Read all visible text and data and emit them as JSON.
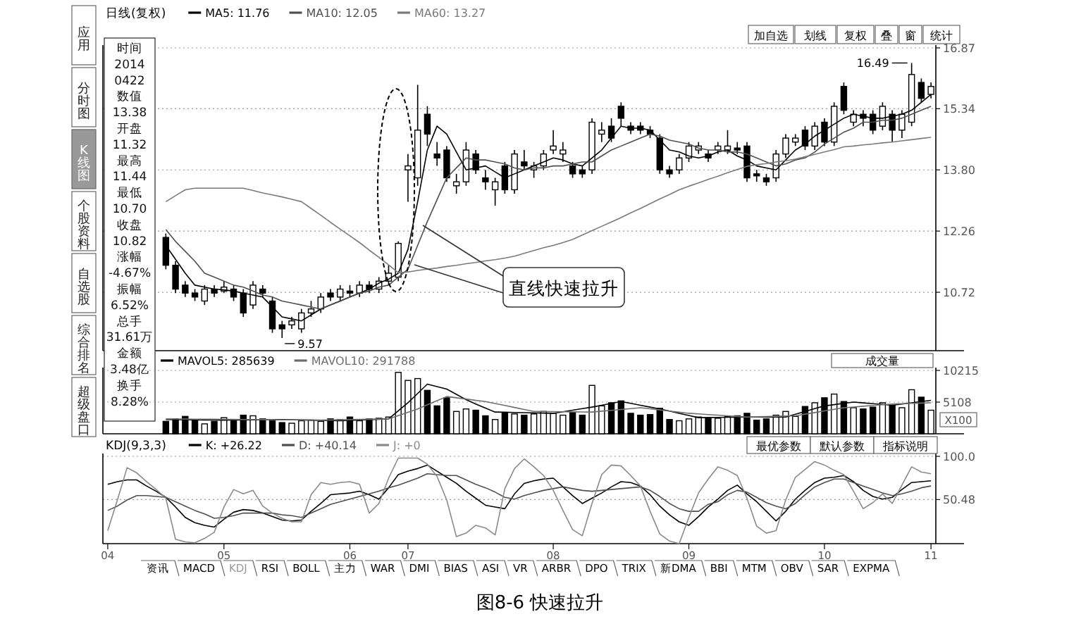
{
  "chart_data": [
    {
      "type": "candlestick",
      "title": "日线(复权)",
      "legend": "top left",
      "tick_labels": "y",
      "grid": "y",
      "ylim": [
        9.25,
        16.87
      ],
      "yticks": [
        10.72,
        12.26,
        {
          "value": 13.8,
          "label": "13.80"
        },
        15.34,
        16.87
      ],
      "categories": [
        null,
        null,
        null,
        null,
        null,
        null,
        null,
        null,
        null,
        null,
        null,
        null,
        null,
        null,
        null,
        null,
        null,
        null,
        null,
        null,
        null,
        null,
        null,
        null,
        null,
        null,
        null,
        null,
        null,
        null,
        null,
        null,
        null,
        null,
        null,
        null,
        null,
        null,
        null,
        null,
        null,
        null,
        null,
        null,
        null,
        null,
        null,
        null,
        null,
        null,
        null,
        null,
        null,
        null,
        null,
        null,
        null,
        null,
        null,
        null,
        null,
        null,
        null,
        null,
        null,
        null,
        null,
        null,
        null,
        null,
        null,
        null,
        null,
        null,
        null,
        null,
        null,
        null,
        null,
        null,
        null,
        null,
        null,
        null,
        null,
        null
      ],
      "color": "#000000",
      "ohlc": [
        null,
        null,
        null,
        null,
        null,
        null,
        [
          12.1,
          12.2,
          11.3,
          11.4
        ],
        [
          11.4,
          11.5,
          10.7,
          10.8
        ],
        [
          10.9,
          11.0,
          10.6,
          10.7
        ],
        [
          10.7,
          10.8,
          10.5,
          10.6
        ],
        [
          10.5,
          10.9,
          10.4,
          10.8
        ],
        [
          10.8,
          10.9,
          10.6,
          10.7
        ],
        [
          10.75,
          11.0,
          10.7,
          10.85
        ],
        [
          10.8,
          10.9,
          10.5,
          10.6
        ],
        [
          10.7,
          10.8,
          10.1,
          10.2
        ],
        [
          10.4,
          11.0,
          10.3,
          10.9
        ],
        [
          10.8,
          10.9,
          10.6,
          10.7
        ],
        [
          10.5,
          10.6,
          9.7,
          9.8
        ],
        [
          9.9,
          10.0,
          9.57,
          9.8
        ],
        [
          9.9,
          10.1,
          9.8,
          10.0
        ],
        [
          9.8,
          10.3,
          9.7,
          10.2
        ],
        [
          10.2,
          10.5,
          10.1,
          10.3
        ],
        [
          10.3,
          10.7,
          10.2,
          10.6
        ],
        [
          10.7,
          10.8,
          10.5,
          10.6
        ],
        [
          10.6,
          10.9,
          10.5,
          10.8
        ],
        [
          10.75,
          10.9,
          10.6,
          10.7
        ],
        [
          10.7,
          11.0,
          10.6,
          10.9
        ],
        [
          10.9,
          11.0,
          10.7,
          10.8
        ],
        [
          10.8,
          11.1,
          10.7,
          11.0
        ],
        [
          11.0,
          11.4,
          10.9,
          11.2
        ],
        [
          11.1,
          12.0,
          11.0,
          11.95
        ],
        [
          13.8,
          14.2,
          13.0,
          13.9
        ],
        [
          13.6,
          15.94,
          13.4,
          14.8
        ],
        [
          15.2,
          15.4,
          14.4,
          14.7
        ],
        [
          14.2,
          14.5,
          13.9,
          14.1
        ],
        [
          14.3,
          14.4,
          13.5,
          13.6
        ],
        [
          13.4,
          13.7,
          13.2,
          13.5
        ],
        [
          13.5,
          14.5,
          13.4,
          14.3
        ],
        [
          14.2,
          14.3,
          13.7,
          13.8
        ],
        [
          13.6,
          13.8,
          13.3,
          13.5
        ],
        [
          13.3,
          13.6,
          12.9,
          13.5
        ],
        [
          13.9,
          14.0,
          13.2,
          13.3
        ],
        [
          13.3,
          14.3,
          13.2,
          14.2
        ],
        [
          14.0,
          14.3,
          13.8,
          13.9
        ],
        [
          13.8,
          14.0,
          13.6,
          13.9
        ],
        [
          13.9,
          14.3,
          13.8,
          14.2
        ],
        [
          14.3,
          14.8,
          14.2,
          14.4
        ],
        [
          14.2,
          14.5,
          14.0,
          14.3
        ],
        [
          13.9,
          14.0,
          13.6,
          13.7
        ],
        [
          13.8,
          13.9,
          13.6,
          13.7
        ],
        [
          13.8,
          15.1,
          13.7,
          15.0
        ],
        [
          14.7,
          15.0,
          14.5,
          14.8
        ],
        [
          14.9,
          15.1,
          14.5,
          14.6
        ],
        [
          15.4,
          15.5,
          14.9,
          15.1
        ],
        [
          14.9,
          15.0,
          14.7,
          14.8
        ],
        [
          14.9,
          15.0,
          14.7,
          14.8
        ],
        [
          14.8,
          14.9,
          14.6,
          14.7
        ],
        [
          14.6,
          14.7,
          13.7,
          13.8
        ],
        [
          13.8,
          13.9,
          13.6,
          13.7
        ],
        [
          13.8,
          14.2,
          13.7,
          14.1
        ],
        [
          14.1,
          14.5,
          14.0,
          14.4
        ],
        [
          14.3,
          14.5,
          14.2,
          14.4
        ],
        [
          14.2,
          14.3,
          14.0,
          14.1
        ],
        [
          14.3,
          14.5,
          14.2,
          14.4
        ],
        [
          14.3,
          14.8,
          14.2,
          14.4
        ],
        [
          14.35,
          14.5,
          14.2,
          14.3
        ],
        [
          14.4,
          14.5,
          13.5,
          13.6
        ],
        [
          13.7,
          13.8,
          13.5,
          13.65
        ],
        [
          13.6,
          13.7,
          13.4,
          13.5
        ],
        [
          13.6,
          14.3,
          13.5,
          14.2
        ],
        [
          14.2,
          14.7,
          14.1,
          14.6
        ],
        [
          14.5,
          14.7,
          14.4,
          14.6
        ],
        [
          14.8,
          14.9,
          14.3,
          14.4
        ],
        [
          14.4,
          15.0,
          14.3,
          14.9
        ],
        [
          15.0,
          15.1,
          14.4,
          14.5
        ],
        [
          14.5,
          15.5,
          14.4,
          15.4
        ],
        [
          15.9,
          16.0,
          15.2,
          15.3
        ],
        [
          15.0,
          15.3,
          14.9,
          15.2
        ],
        [
          15.2,
          15.3,
          14.9,
          15.1
        ],
        [
          15.2,
          15.3,
          14.7,
          14.8
        ],
        [
          14.9,
          15.5,
          14.8,
          15.4
        ],
        [
          15.2,
          15.3,
          14.5,
          14.8
        ],
        [
          14.8,
          15.3,
          14.6,
          15.2
        ],
        [
          15.0,
          16.49,
          14.9,
          16.2
        ],
        [
          16.0,
          16.1,
          15.5,
          15.6
        ],
        [
          15.7,
          16.0,
          15.6,
          15.9
        ]
      ],
      "series": [
        {
          "name": "MA5: 11.76",
          "type": "line",
          "color": "#000000",
          "values": [
            null,
            null,
            null,
            null,
            null,
            null,
            11.9,
            11.55,
            11.2,
            10.9,
            10.85,
            10.8,
            10.78,
            10.75,
            10.7,
            10.65,
            10.6,
            10.35,
            10.1,
            10.05,
            10.0,
            10.15,
            10.3,
            10.4,
            10.5,
            10.6,
            10.7,
            10.8,
            10.95,
            11.05,
            11.2,
            11.8,
            13.0,
            14.3,
            14.9,
            14.7,
            14.25,
            13.8,
            13.85,
            13.9,
            13.75,
            13.6,
            13.7,
            13.8,
            13.9,
            14.0,
            14.1,
            14.05,
            13.95,
            13.9,
            14.1,
            14.3,
            14.6,
            14.9,
            14.85,
            14.85,
            14.8,
            14.55,
            14.3,
            14.25,
            14.15,
            14.1,
            14.15,
            14.25,
            14.3,
            14.15,
            14.05,
            13.9,
            13.85,
            13.8,
            14.05,
            14.3,
            14.45,
            14.65,
            14.8,
            14.95,
            15.1,
            15.2,
            15.15,
            15.1,
            15.1,
            15.15,
            15.2,
            15.3,
            15.5,
            15.7
          ]
        },
        {
          "name": "MA10: 12.05",
          "type": "line",
          "color": "#505050",
          "values": [
            null,
            null,
            null,
            null,
            null,
            null,
            12.3,
            12.0,
            11.75,
            11.5,
            11.2,
            11.1,
            11.0,
            10.9,
            10.85,
            10.75,
            10.65,
            10.6,
            10.5,
            10.45,
            10.4,
            10.35,
            10.3,
            10.4,
            10.5,
            10.6,
            10.7,
            10.75,
            10.85,
            10.9,
            11.1,
            11.3,
            11.9,
            12.5,
            13.05,
            13.6,
            13.85,
            14.1,
            14.05,
            14.05,
            14.0,
            13.95,
            13.85,
            13.8,
            13.85,
            13.85,
            13.9,
            13.9,
            13.95,
            14.0,
            14.0,
            14.15,
            14.3,
            14.4,
            14.5,
            14.6,
            14.7,
            14.65,
            14.55,
            14.5,
            14.45,
            14.35,
            14.3,
            14.3,
            14.25,
            14.25,
            14.2,
            14.1,
            14.0,
            13.9,
            13.95,
            14.05,
            14.1,
            14.25,
            14.45,
            14.6,
            14.75,
            14.85,
            15.0,
            15.0,
            15.05,
            15.05,
            15.1,
            15.2,
            15.3,
            15.4
          ]
        },
        {
          "name": "MA60: 13.27",
          "type": "line",
          "color": "#7a7a7a",
          "values": [
            null,
            null,
            null,
            null,
            null,
            null,
            13.0,
            13.15,
            13.3,
            13.34,
            13.34,
            13.34,
            13.34,
            13.34,
            13.34,
            13.28,
            13.22,
            13.17,
            13.12,
            13.06,
            13.0,
            12.83,
            12.66,
            12.48,
            12.31,
            12.14,
            11.97,
            11.78,
            11.6,
            11.41,
            11.21,
            11.23,
            11.27,
            11.3,
            11.33,
            11.37,
            11.4,
            11.44,
            11.47,
            11.51,
            11.54,
            11.58,
            11.63,
            11.7,
            11.77,
            11.84,
            11.9,
            11.97,
            12.05,
            12.16,
            12.27,
            12.38,
            12.49,
            12.6,
            12.72,
            12.83,
            12.95,
            13.07,
            13.18,
            13.3,
            13.39,
            13.47,
            13.56,
            13.64,
            13.73,
            13.81,
            13.89,
            13.93,
            13.96,
            14.0,
            14.03,
            14.07,
            14.13,
            14.19,
            14.25,
            14.31,
            14.38,
            14.4,
            14.43,
            14.45,
            14.48,
            14.5,
            14.53,
            14.56,
            14.59,
            14.62
          ]
        }
      ],
      "annotations": [
        "16.49",
        "9.57",
        "直线快速拉升",
        "时间",
        "2014",
        "0422",
        "数值",
        "13.38",
        "开盘",
        "11.32",
        "最高",
        "11.44",
        "最低",
        "10.70",
        "收盘",
        "10.82",
        "涨幅",
        "-4.67%",
        "振幅",
        "6.52%",
        "总手",
        "31.61万",
        "金额",
        "3.48亿",
        "换手",
        "8.28%",
        "应用",
        "分时图",
        "K线图",
        "个股资料",
        "自选股",
        "综合排名",
        "超级盘口",
        "加自选",
        "划线",
        "复权",
        "叠",
        "窗",
        "统计"
      ]
    },
    {
      "type": "bar",
      "legend": "top left",
      "tick_labels": "y",
      "grid": "y",
      "ylim": [
        0,
        10215
      ],
      "yticks": [
        5108,
        10215
      ],
      "categories": [
        null,
        null,
        null,
        null,
        null,
        null,
        null,
        null,
        null,
        null,
        null,
        null,
        null,
        null,
        null,
        null,
        null,
        null,
        null,
        null,
        null,
        null,
        null,
        null,
        null,
        null,
        null,
        null,
        null,
        null,
        null,
        null,
        null,
        null,
        null,
        null,
        null,
        null,
        null,
        null,
        null,
        null,
        null,
        null,
        null,
        null,
        null,
        null,
        null,
        null,
        null,
        null,
        null,
        null,
        null,
        null,
        null,
        null,
        null,
        null,
        null,
        null,
        null,
        null,
        null,
        null,
        null,
        null,
        null,
        null,
        null,
        null,
        null,
        null,
        null,
        null,
        null,
        null,
        null,
        null,
        null,
        null,
        null,
        null,
        null,
        null
      ],
      "values": [
        null,
        null,
        null,
        null,
        null,
        null,
        2000,
        2400,
        2800,
        2300,
        1600,
        2000,
        2600,
        2100,
        3000,
        2900,
        2400,
        2200,
        1800,
        1700,
        2100,
        2200,
        2000,
        2400,
        2300,
        2700,
        2100,
        2400,
        2500,
        2700,
        9900,
        8600,
        8900,
        7000,
        4500,
        5800,
        3600,
        4000,
        3800,
        2900,
        2300,
        3400,
        3200,
        3000,
        3200,
        3600,
        3300,
        3000,
        3500,
        3000,
        7800,
        4500,
        5000,
        5300,
        3300,
        3000,
        3100,
        4100,
        2300,
        2100,
        2400,
        2700,
        2500,
        2500,
        2800,
        2900,
        3300,
        2200,
        2400,
        3000,
        3600,
        2800,
        4400,
        5000,
        5800,
        6400,
        5200,
        4200,
        4000,
        4300,
        5000,
        4600,
        4200,
        7100,
        5900,
        3800
      ],
      "colors": [
        null,
        null,
        null,
        null,
        null,
        null,
        "#000000",
        "#000000",
        "#000000",
        "#000000",
        "#ffffff",
        "#000000",
        "#ffffff",
        "#000000",
        "#000000",
        "#ffffff",
        "#000000",
        "#000000",
        "#000000",
        "#ffffff",
        "#ffffff",
        "#ffffff",
        "#ffffff",
        "#000000",
        "#ffffff",
        "#000000",
        "#ffffff",
        "#000000",
        "#ffffff",
        "#ffffff",
        "#ffffff",
        "#ffffff",
        "#ffffff",
        "#000000",
        "#000000",
        "#000000",
        "#ffffff",
        "#ffffff",
        "#000000",
        "#000000",
        "#ffffff",
        "#000000",
        "#ffffff",
        "#000000",
        "#ffffff",
        "#ffffff",
        "#ffffff",
        "#ffffff",
        "#000000",
        "#000000",
        "#ffffff",
        "#ffffff",
        "#000000",
        "#000000",
        "#000000",
        "#000000",
        "#000000",
        "#000000",
        "#000000",
        "#ffffff",
        "#ffffff",
        "#ffffff",
        "#000000",
        "#ffffff",
        "#ffffff",
        "#000000",
        "#000000",
        "#000000",
        "#000000",
        "#ffffff",
        "#ffffff",
        "#ffffff",
        "#000000",
        "#ffffff",
        "#000000",
        "#ffffff",
        "#000000",
        "#ffffff",
        "#000000",
        "#000000",
        "#ffffff",
        "#000000",
        "#ffffff",
        "#ffffff",
        "#000000",
        "#ffffff"
      ],
      "series": [
        {
          "name": "MAVOL5: 285639",
          "type": "line",
          "color": "#000000",
          "values": [
            null,
            null,
            null,
            null,
            null,
            null,
            2300,
            2280,
            2270,
            2250,
            2230,
            2220,
            2200,
            2220,
            2230,
            2250,
            2270,
            2280,
            2300,
            2270,
            2230,
            2200,
            2170,
            2130,
            2100,
            2160,
            2220,
            2280,
            2340,
            2400,
            3700,
            5000,
            6500,
            8000,
            7600,
            7200,
            6350,
            5500,
            4800,
            4150,
            3500,
            3470,
            3430,
            3400,
            3370,
            3330,
            3300,
            3550,
            3800,
            4050,
            4300,
            4600,
            4900,
            5200,
            4900,
            4600,
            4300,
            4000,
            3650,
            3300,
            2950,
            2600,
            2620,
            2640,
            2660,
            2680,
            2700,
            2700,
            2700,
            2700,
            2700,
            3150,
            3600,
            4050,
            4500,
            4700,
            4900,
            5100,
            4980,
            4850,
            4730,
            4600,
            4800,
            5000,
            5200,
            5400
          ]
        },
        {
          "name": "MAVOL10: 291788",
          "type": "line",
          "color": "#6e6e6e",
          "values": [
            null,
            null,
            null,
            null,
            null,
            null,
            2400,
            2390,
            2380,
            2360,
            2350,
            2340,
            2330,
            2310,
            2300,
            2290,
            2280,
            2260,
            2250,
            2240,
            2230,
            2210,
            2200,
            2230,
            2260,
            2290,
            2310,
            2340,
            2370,
            2400,
            2930,
            3470,
            4000,
            4670,
            5330,
            6000,
            5800,
            5600,
            5400,
            5200,
            4880,
            4560,
            4240,
            3920,
            3600,
            3580,
            3570,
            3550,
            3530,
            3520,
            3500,
            3640,
            3780,
            3920,
            4060,
            4200,
            4020,
            3840,
            3660,
            3480,
            3300,
            3200,
            3100,
            3000,
            2900,
            2800,
            2700,
            2740,
            2780,
            2820,
            2860,
            2900,
            3160,
            3420,
            3680,
            3940,
            4200,
            4320,
            4440,
            4560,
            4680,
            4800,
            4850,
            4900,
            4950,
            5000
          ]
        }
      ],
      "annotations": [
        "成交量",
        "X100"
      ]
    },
    {
      "type": "line",
      "title": "KDJ(9,3,3)",
      "legend": "top left",
      "grid": "y",
      "ylim": [
        0,
        100
      ],
      "yticks": [
        {
          "value": 50.48,
          "label": "50.48"
        },
        {
          "value": 100,
          "label": "100.0"
        }
      ],
      "categories": [
        "04",
        null,
        null,
        null,
        null,
        null,
        null,
        null,
        null,
        null,
        null,
        null,
        "05",
        null,
        null,
        null,
        null,
        null,
        null,
        null,
        null,
        null,
        null,
        null,
        null,
        "06",
        null,
        null,
        null,
        null,
        null,
        "07",
        null,
        null,
        null,
        null,
        null,
        null,
        null,
        null,
        null,
        null,
        null,
        null,
        null,
        null,
        "08",
        null,
        null,
        null,
        null,
        null,
        null,
        null,
        null,
        null,
        null,
        null,
        null,
        null,
        "09",
        null,
        null,
        null,
        null,
        null,
        null,
        null,
        null,
        null,
        null,
        null,
        null,
        null,
        "10",
        null,
        null,
        null,
        null,
        null,
        null,
        null,
        null,
        null,
        null,
        "11"
      ],
      "series": [
        {
          "name": "K: +26.22",
          "color": "#000000",
          "values": [
            68,
            71,
            73,
            73,
            66,
            60,
            53,
            42,
            30,
            24,
            21,
            19,
            28,
            36,
            39,
            38,
            35,
            31,
            27,
            26,
            27,
            37,
            46,
            56,
            57,
            58,
            60,
            56,
            51,
            64,
            79,
            83,
            86,
            90,
            83,
            76,
            69,
            60,
            52,
            44,
            42,
            40,
            57,
            69,
            72,
            74,
            75,
            65,
            55,
            46,
            52,
            58,
            65,
            71,
            70,
            66,
            56,
            43,
            33,
            25,
            21,
            31,
            42,
            51,
            61,
            67,
            57,
            48,
            37,
            26,
            37,
            51,
            61,
            70,
            75,
            76,
            78,
            71,
            61,
            54,
            51,
            53,
            62,
            70,
            71,
            72
          ]
        },
        {
          "name": "D: +40.14",
          "color": "#505050",
          "values": [
            38,
            43,
            50,
            55,
            55,
            54,
            53,
            48,
            43,
            38,
            34,
            29,
            30,
            32,
            35,
            35,
            35,
            35,
            33,
            32,
            30,
            35,
            40,
            45,
            48,
            51,
            54,
            57,
            60,
            64,
            67,
            71,
            75,
            80,
            79,
            78,
            78,
            73,
            68,
            64,
            59,
            53,
            51,
            55,
            58,
            61,
            63,
            65,
            63,
            61,
            60,
            61,
            62,
            63,
            64,
            65,
            61,
            54,
            46,
            40,
            37,
            37,
            45,
            48,
            56,
            61,
            59,
            53,
            47,
            43,
            40,
            46,
            56,
            65,
            70,
            74,
            74,
            70,
            66,
            62,
            58,
            55,
            57,
            60,
            64,
            66
          ]
        },
        {
          "name": "J: +0",
          "color": "#8a8a8a",
          "values": [
            15,
            50,
            87,
            81,
            71,
            62,
            52,
            5,
            2,
            1,
            6,
            13,
            42,
            62,
            57,
            61,
            43,
            35,
            29,
            25,
            25,
            56,
            70,
            68,
            70,
            71,
            68,
            35,
            46,
            75,
            98,
            98,
            98,
            91,
            77,
            50,
            8,
            12,
            21,
            18,
            10,
            63,
            86,
            97,
            88,
            78,
            61,
            38,
            16,
            9,
            46,
            79,
            90,
            89,
            78,
            66,
            37,
            11,
            3,
            0,
            30,
            58,
            74,
            88,
            84,
            78,
            52,
            20,
            12,
            15,
            50,
            76,
            85,
            94,
            90,
            84,
            79,
            60,
            40,
            47,
            57,
            46,
            67,
            88,
            82,
            80
          ]
        }
      ],
      "annotations": [
        "最优参数",
        "默认参数",
        "指标说明",
        "资讯",
        "MACD",
        "KDJ",
        "RSI",
        "BOLL",
        "主力",
        "WAR",
        "DMI",
        "BIAS",
        "ASI",
        "VR",
        "ARBR",
        "DPO",
        "TRIX",
        "新DMA",
        "BBI",
        "MTM",
        "OBV",
        "SAR",
        "EXPMA",
        "图8-6 快速拉升"
      ]
    }
  ]
}
